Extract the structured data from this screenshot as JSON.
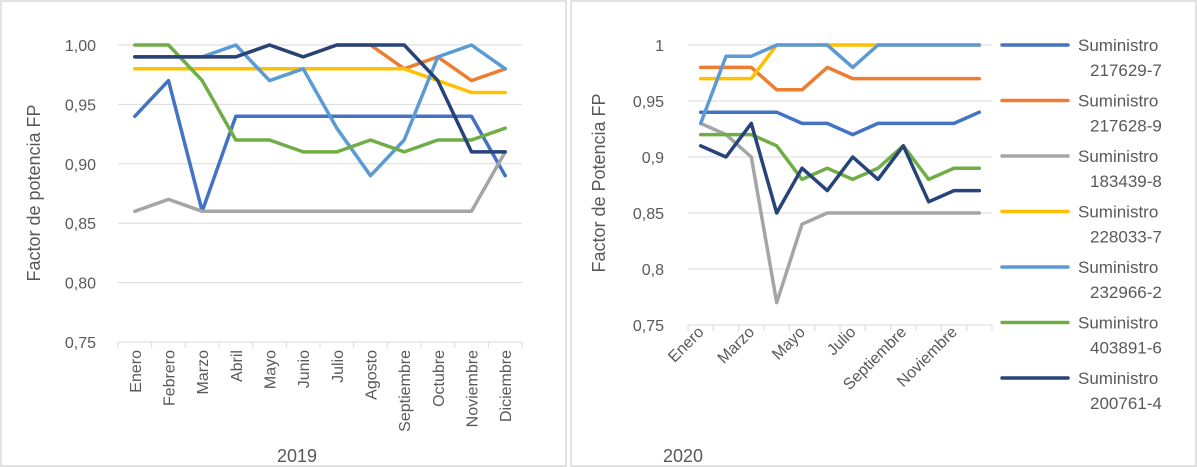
{
  "chart_data": [
    {
      "type": "line",
      "title": "",
      "xlabel": "2019",
      "ylabel": "Factor de potencia FP",
      "categories": [
        "Enero",
        "Febrero",
        "Marzo",
        "Abril",
        "Mayo",
        "Junio",
        "Julio",
        "Agosto",
        "Septiembre",
        "Octubre",
        "Noviembre",
        "Diciembre"
      ],
      "y_ticks": [
        "1,00",
        "0,95",
        "0,90",
        "0,85",
        "0,80",
        "0,75"
      ],
      "ylim": [
        0.75,
        1.0
      ],
      "grid": true,
      "series": [
        {
          "key": "s217629",
          "color": "#4472C4",
          "values": [
            0.94,
            0.97,
            0.86,
            0.94,
            0.94,
            0.94,
            0.94,
            0.94,
            0.94,
            0.94,
            0.94,
            0.89
          ]
        },
        {
          "key": "s217628",
          "color": "#ED7D31",
          "values": [
            0.99,
            0.99,
            0.99,
            0.99,
            1.0,
            0.99,
            1.0,
            1.0,
            0.98,
            0.99,
            0.97,
            0.98
          ]
        },
        {
          "key": "s183439",
          "color": "#A5A5A5",
          "values": [
            0.86,
            0.87,
            0.86,
            0.86,
            0.86,
            0.86,
            0.86,
            0.86,
            0.86,
            0.86,
            0.86,
            0.91
          ]
        },
        {
          "key": "s228033",
          "color": "#FFC000",
          "values": [
            0.98,
            0.98,
            0.98,
            0.98,
            0.98,
            0.98,
            0.98,
            0.98,
            0.98,
            0.97,
            0.96,
            0.96
          ]
        },
        {
          "key": "s232966",
          "color": "#5B9BD5",
          "values": [
            0.99,
            0.99,
            0.99,
            1.0,
            0.97,
            0.98,
            0.93,
            0.89,
            0.92,
            0.99,
            1.0,
            0.98
          ]
        },
        {
          "key": "s403891",
          "color": "#70AD47",
          "values": [
            1.0,
            1.0,
            0.97,
            0.92,
            0.92,
            0.91,
            0.91,
            0.92,
            0.91,
            0.92,
            0.92,
            0.93
          ]
        },
        {
          "key": "s200761",
          "color": "#264478",
          "values": [
            0.99,
            0.99,
            0.99,
            0.99,
            1.0,
            0.99,
            1.0,
            1.0,
            1.0,
            0.97,
            0.91,
            0.91
          ]
        }
      ]
    },
    {
      "type": "line",
      "title": "",
      "xlabel": "2020",
      "ylabel": "Factor de Potencia FP",
      "categories": [
        "Enero",
        "",
        "Marzo",
        "",
        "Mayo",
        "",
        "Julio",
        "",
        "Septiembre",
        "",
        "Noviembre",
        ""
      ],
      "y_ticks": [
        "1",
        "0,95",
        "0,9",
        "0,85",
        "0,8",
        "0,75"
      ],
      "ylim": [
        0.75,
        1.0
      ],
      "grid": true,
      "legend_position": "right",
      "series": [
        {
          "key": "s217629",
          "name_line1": "Suministro",
          "name_line2": "217629-7",
          "color": "#4472C4",
          "values": [
            0.94,
            0.94,
            0.94,
            0.94,
            0.93,
            0.93,
            0.92,
            0.93,
            0.93,
            0.93,
            0.93,
            0.94
          ]
        },
        {
          "key": "s217628",
          "name_line1": "Suministro",
          "name_line2": "217628-9",
          "color": "#ED7D31",
          "values": [
            0.98,
            0.98,
            0.98,
            0.96,
            0.96,
            0.98,
            0.97,
            0.97,
            0.97,
            0.97,
            0.97,
            0.97
          ]
        },
        {
          "key": "s183439",
          "name_line1": "Suministro",
          "name_line2": "183439-8",
          "color": "#A5A5A5",
          "values": [
            0.93,
            0.92,
            0.9,
            0.77,
            0.84,
            0.85,
            0.85,
            0.85,
            0.85,
            0.85,
            0.85,
            0.85
          ]
        },
        {
          "key": "s228033",
          "name_line1": "Suministro",
          "name_line2": "228033-7",
          "color": "#FFC000",
          "values": [
            0.97,
            0.97,
            0.97,
            1.0,
            1.0,
            1.0,
            1.0,
            1.0,
            1.0,
            1.0,
            1.0,
            1.0
          ]
        },
        {
          "key": "s232966",
          "name_line1": "Suministro",
          "name_line2": "232966-2",
          "color": "#5B9BD5",
          "values": [
            0.93,
            0.99,
            0.99,
            1.0,
            1.0,
            1.0,
            0.98,
            1.0,
            1.0,
            1.0,
            1.0,
            1.0
          ]
        },
        {
          "key": "s403891",
          "name_line1": "Suministro",
          "name_line2": "403891-6",
          "color": "#70AD47",
          "values": [
            0.92,
            0.92,
            0.92,
            0.91,
            0.88,
            0.89,
            0.88,
            0.89,
            0.91,
            0.88,
            0.89,
            0.89
          ]
        },
        {
          "key": "s200761",
          "name_line1": "Suministro",
          "name_line2": "200761-4",
          "color": "#264478",
          "values": [
            0.91,
            0.9,
            0.93,
            0.85,
            0.89,
            0.87,
            0.9,
            0.88,
            0.91,
            0.86,
            0.87,
            0.87
          ]
        }
      ]
    }
  ]
}
